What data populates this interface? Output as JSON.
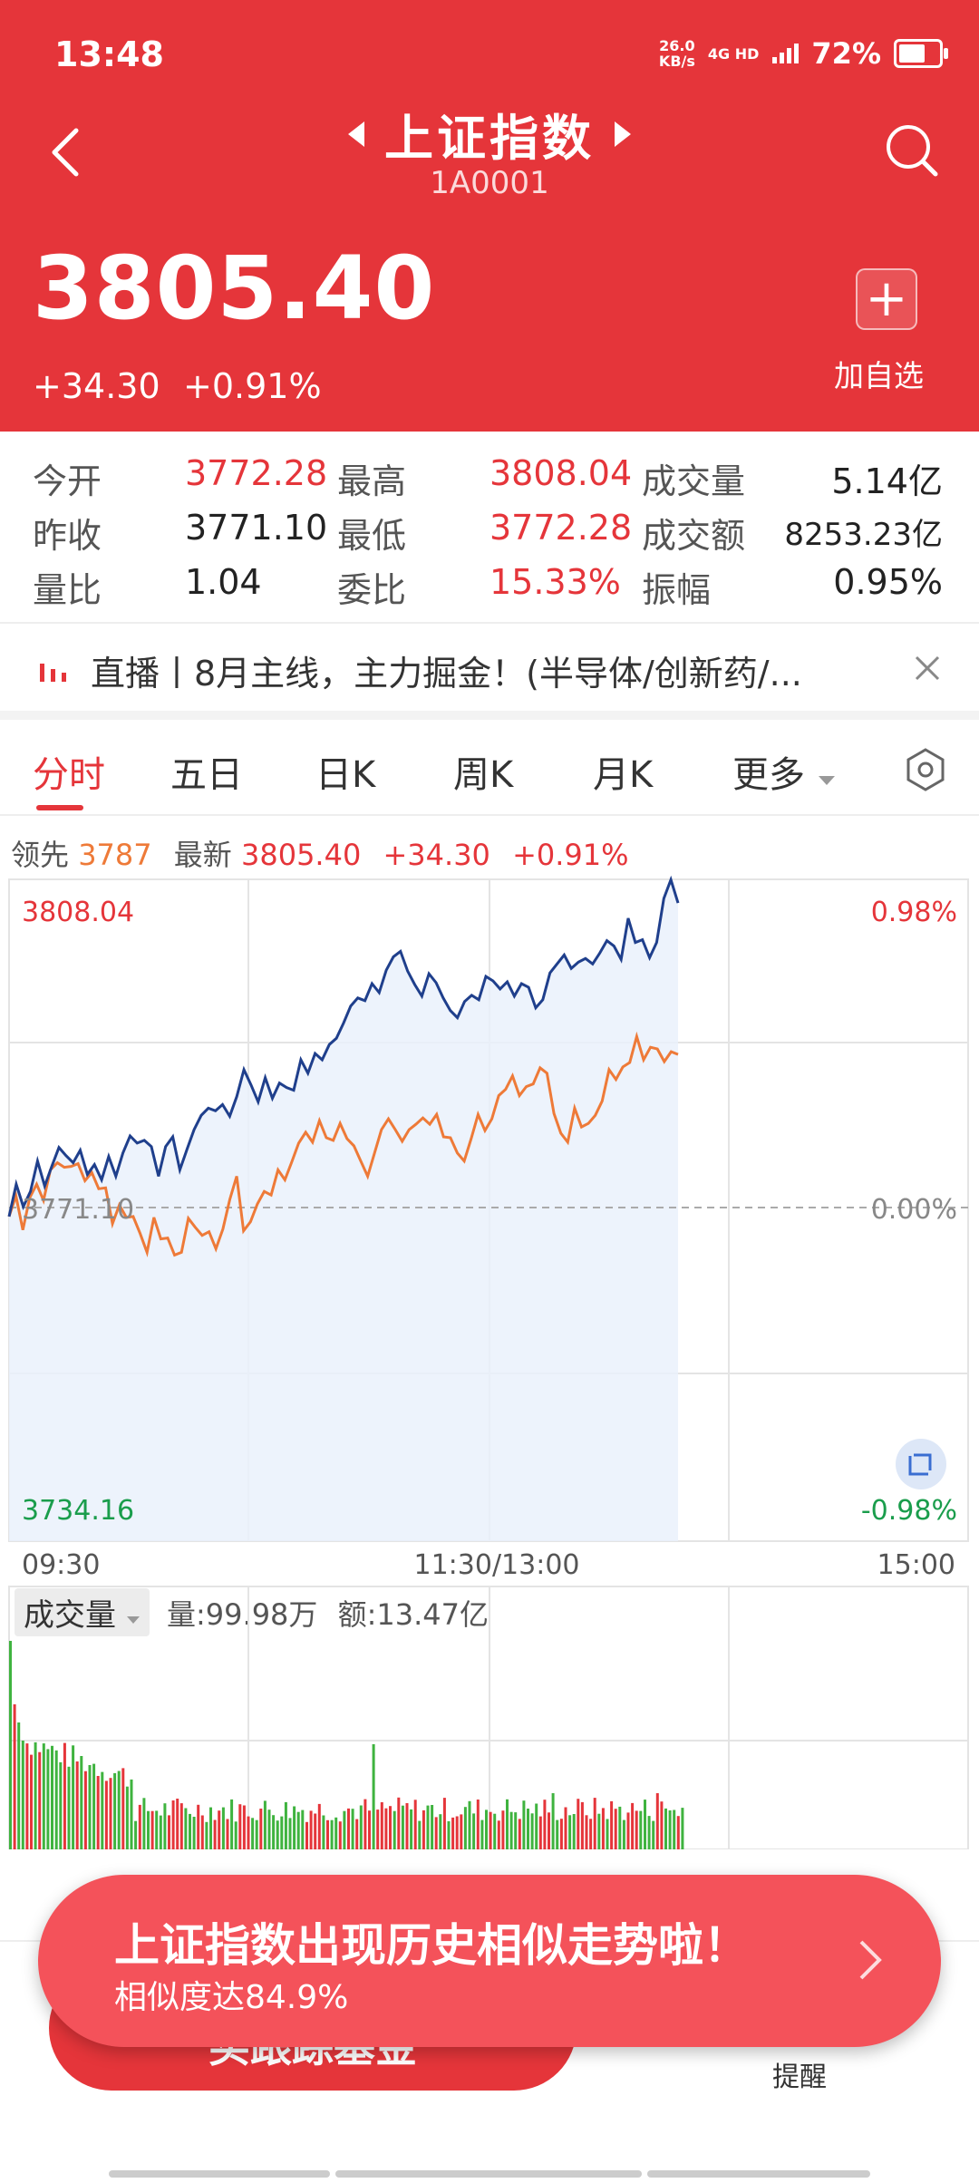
{
  "status_bar": {
    "time": "13:48",
    "net_speed": "26.0",
    "net_unit": "KB/s",
    "net_type": "4G HD",
    "battery": "72%"
  },
  "header": {
    "title": "上证指数",
    "code": "1A0001",
    "back_icon": "back-icon",
    "search_icon": "search-icon"
  },
  "quote": {
    "price": "3805.40",
    "change": "+34.30",
    "change_pct": "+0.91%",
    "add_label": "加自选"
  },
  "stats": {
    "open_label": "今开",
    "open": "3772.28",
    "high_label": "最高",
    "high": "3808.04",
    "volume_label": "成交量",
    "volume": "5.14亿",
    "prev_label": "昨收",
    "prev": "3771.10",
    "low_label": "最低",
    "low": "3772.28",
    "amount_label": "成交额",
    "amount": "8253.23亿",
    "ratio_label": "量比",
    "ratio": "1.04",
    "committee_label": "委比",
    "committee": "15.33%",
    "amp_label": "振幅",
    "amp": "0.95%"
  },
  "live": {
    "text": "直播丨8月主线，主力掘金！(半导体/创新药/..."
  },
  "tabs": [
    "分时",
    "五日",
    "日K",
    "周K",
    "月K",
    "更多"
  ],
  "info": {
    "leader_label": "领先",
    "leader": "3787",
    "latest_label": "最新",
    "latest": "3805.40",
    "chg": "+34.30",
    "pct": "+0.91%"
  },
  "chart_data": {
    "type": "line",
    "x_labels": [
      "09:30",
      "11:30/13:00",
      "15:00"
    ],
    "y_labels": {
      "top": "3808.04",
      "mid": "3771.10",
      "bottom": "3734.16"
    },
    "pct_labels": {
      "top": "0.98%",
      "mid": "0.00%",
      "bottom": "-0.98%"
    },
    "ylim": [
      3734.16,
      3808.04
    ],
    "series": [
      {
        "color": "#1f3f8c",
        "values": [
          3770.4,
          3774.0,
          3771.5,
          3773.2,
          3776.6,
          3773.8,
          3776.0,
          3778.1,
          3777.2,
          3776.4,
          3777.8,
          3775.1,
          3776.2,
          3774.5,
          3777.1,
          3774.9,
          3777.5,
          3779.4,
          3778.6,
          3778.9,
          3778.2,
          3774.9,
          3778.2,
          3779.3,
          3775.6,
          3777.9,
          3780.1,
          3781.7,
          3782.5,
          3782.2,
          3782.9,
          3781.6,
          3783.8,
          3786.8,
          3785.1,
          3783.2,
          3785.9,
          3783.6,
          3785.3,
          3784.8,
          3784.5,
          3787.9,
          3786.4,
          3788.6,
          3787.9,
          3789.6,
          3790.3,
          3792.0,
          3793.9,
          3794.8,
          3794.5,
          3796.4,
          3795.4,
          3797.9,
          3799.4,
          3800.0,
          3797.8,
          3796.3,
          3795.0,
          3797.5,
          3796.5,
          3794.8,
          3793.4,
          3792.6,
          3794.4,
          3795.1,
          3794.6,
          3797.2,
          3796.7,
          3795.8,
          3796.6,
          3795.0,
          3796.4,
          3796.0,
          3793.7,
          3794.6,
          3797.6,
          3798.6,
          3799.6,
          3798.1,
          3798.8,
          3799.2,
          3798.6,
          3799.8,
          3801.2,
          3800.6,
          3799.1,
          3803.7,
          3801.0,
          3801.3,
          3799.3,
          3801.0,
          3805.9,
          3808.0,
          3805.4
        ]
      },
      {
        "color": "#ee7a38",
        "values": [
          3770.4,
          3772.7,
          3768.9,
          3772.5,
          3774.0,
          3772.2,
          3775.6,
          3776.4,
          3775.9,
          3776.0,
          3776.3,
          3774.4,
          3775.3,
          3773.5,
          3773.6,
          3769.6,
          3771.7,
          3770.3,
          3770.4,
          3768.5,
          3766.4,
          3770.3,
          3767.9,
          3768.0,
          3766.1,
          3766.4,
          3770.2,
          3769.2,
          3768.3,
          3768.7,
          3766.8,
          3769.0,
          3772.3,
          3774.9,
          3768.8,
          3769.8,
          3771.8,
          3773.2,
          3772.8,
          3775.6,
          3774.5,
          3776.5,
          3778.6,
          3779.8,
          3778.7,
          3781.1,
          3779.2,
          3778.9,
          3780.8,
          3779.1,
          3778.3,
          3776.6,
          3774.9,
          3777.5,
          3780.1,
          3781.3,
          3780.1,
          3778.8,
          3780.1,
          3780.7,
          3781.4,
          3780.7,
          3781.8,
          3779.3,
          3779.2,
          3777.5,
          3776.6,
          3779.1,
          3781.8,
          3780.0,
          3781.3,
          3783.9,
          3784.6,
          3786.1,
          3783.9,
          3784.9,
          3785.2,
          3787.0,
          3786.4,
          3781.9,
          3779.7,
          3778.7,
          3782.5,
          3780.4,
          3780.8,
          3781.7,
          3783.3,
          3786.8,
          3785.7,
          3787.1,
          3787.6,
          3790.5,
          3787.9,
          3789.3,
          3789.1,
          3787.7,
          3788.8,
          3788.5
        ]
      }
    ]
  },
  "volume": {
    "button": "成交量",
    "qty_label": "量:",
    "qty": "99.98万",
    "amt_label": "额:",
    "amt": "13.47亿"
  },
  "bottom": {
    "follow": "买跟踪基金",
    "remind": "提醒"
  },
  "popup": {
    "title": "上证指数出现历史相似走势啦！",
    "sub": "相似度达84.9%"
  }
}
